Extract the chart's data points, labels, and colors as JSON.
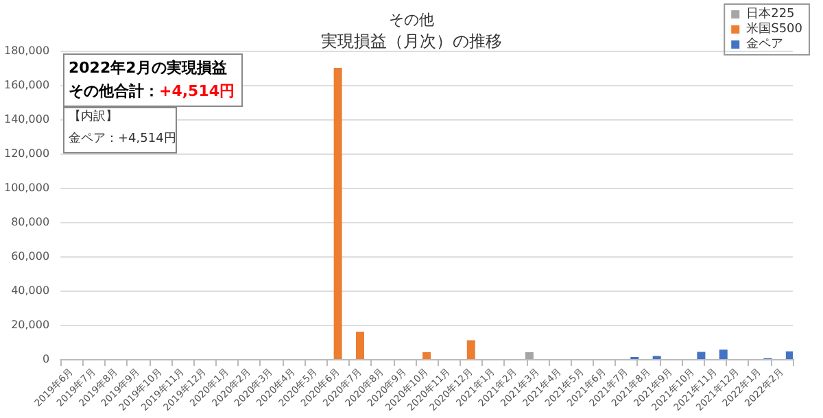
{
  "chart_data": {
    "type": "bar",
    "title": "その他",
    "subtitle": "実現損益（月次）の推移",
    "categories": [
      "2019年6月",
      "2019年7月",
      "2019年8月",
      "2019年9月",
      "2019年10月",
      "2019年11月",
      "2019年12月",
      "2020年1月",
      "2020年2月",
      "2020年3月",
      "2020年4月",
      "2020年5月",
      "2020年6月",
      "2020年7月",
      "2020年8月",
      "2020年9月",
      "2020年10月",
      "2020年11月",
      "2020年12月",
      "2021年1月",
      "2021年2月",
      "2021年3月",
      "2021年4月",
      "2021年5月",
      "2021年6月",
      "2021年7月",
      "2021年8月",
      "2021年9月",
      "2021年10月",
      "2021年11月",
      "2021年12月",
      "2022年1月",
      "2022年2月"
    ],
    "series": [
      {
        "name": "日本225",
        "color": "#a5a5a5",
        "values": [
          null,
          null,
          null,
          null,
          null,
          null,
          null,
          null,
          null,
          null,
          null,
          null,
          null,
          null,
          null,
          null,
          null,
          null,
          null,
          null,
          null,
          4000,
          null,
          null,
          null,
          null,
          null,
          null,
          null,
          null,
          null,
          null,
          null
        ]
      },
      {
        "name": "米国S500",
        "color": "#ed7d31",
        "values": [
          null,
          null,
          null,
          null,
          null,
          null,
          null,
          null,
          null,
          null,
          null,
          null,
          170000,
          16000,
          null,
          null,
          4000,
          null,
          11000,
          null,
          null,
          null,
          null,
          null,
          null,
          null,
          null,
          null,
          null,
          null,
          null,
          null,
          null
        ]
      },
      {
        "name": "金ペア",
        "color": "#4472c4",
        "values": [
          null,
          null,
          null,
          null,
          null,
          null,
          null,
          null,
          null,
          null,
          null,
          null,
          null,
          null,
          null,
          null,
          null,
          null,
          null,
          null,
          null,
          null,
          null,
          null,
          null,
          1200,
          1800,
          null,
          4200,
          5500,
          null,
          500,
          4500
        ]
      }
    ],
    "ylim": [
      0,
      180000
    ],
    "yticks": [
      0,
      {
        "value": 20000,
        "label": "20,000"
      },
      {
        "value": 40000,
        "label": "40,000"
      },
      {
        "value": 60000,
        "label": "60,000"
      },
      {
        "value": 80000,
        "label": "80,000"
      },
      {
        "value": 100000,
        "label": "100,000"
      },
      {
        "value": 120000,
        "label": "120,000"
      },
      {
        "value": 140000,
        "label": "140,000"
      },
      {
        "value": 160000,
        "label": "160,000"
      },
      {
        "value": 180000,
        "label": "180,000"
      }
    ],
    "grid": "y",
    "legend": "top right",
    "annotations": [
      "2022年2月の実現損益",
      "その他合計：+4,514円",
      "【内訳】",
      "金ペア：+4,514円"
    ]
  }
}
